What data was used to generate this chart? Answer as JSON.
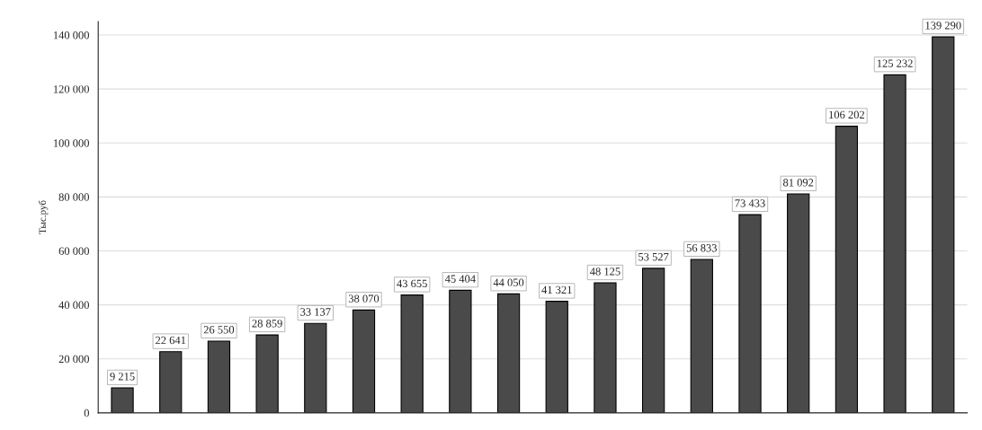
{
  "chart_data": {
    "type": "bar",
    "ylabel": "Тыс.руб",
    "categories": [
      null,
      null,
      null,
      null,
      null,
      null,
      null,
      null,
      null,
      null,
      null,
      null,
      null,
      null,
      null,
      null,
      null,
      null
    ],
    "values": [
      9215,
      22641,
      26550,
      28859,
      33137,
      38070,
      43655,
      45404,
      44050,
      41321,
      48125,
      53527,
      56833,
      73433,
      81092,
      106202,
      125232,
      139290
    ],
    "value_labels": [
      "9 215",
      "22 641",
      "26 550",
      "28 859",
      "33 137",
      "38 070",
      "43 655",
      "45 404",
      "44 050",
      "41 321",
      "48 125",
      "53 527",
      "56 833",
      "73 433",
      "81 092",
      "106 202",
      "125 232",
      "139 290"
    ],
    "color": "#4a4a4a",
    "ylim": [
      0,
      145000
    ],
    "yticks": [
      0,
      {
        "value": 20000,
        "label": "20 000"
      },
      {
        "value": 40000,
        "label": "40 000"
      },
      {
        "value": 60000,
        "label": "60 000"
      },
      {
        "value": 80000,
        "label": "80 000"
      },
      {
        "value": 100000,
        "label": "100 000"
      },
      {
        "value": 120000,
        "label": "120 000"
      },
      {
        "value": 140000,
        "label": "140 000"
      }
    ],
    "grid": "y",
    "legend": false
  }
}
